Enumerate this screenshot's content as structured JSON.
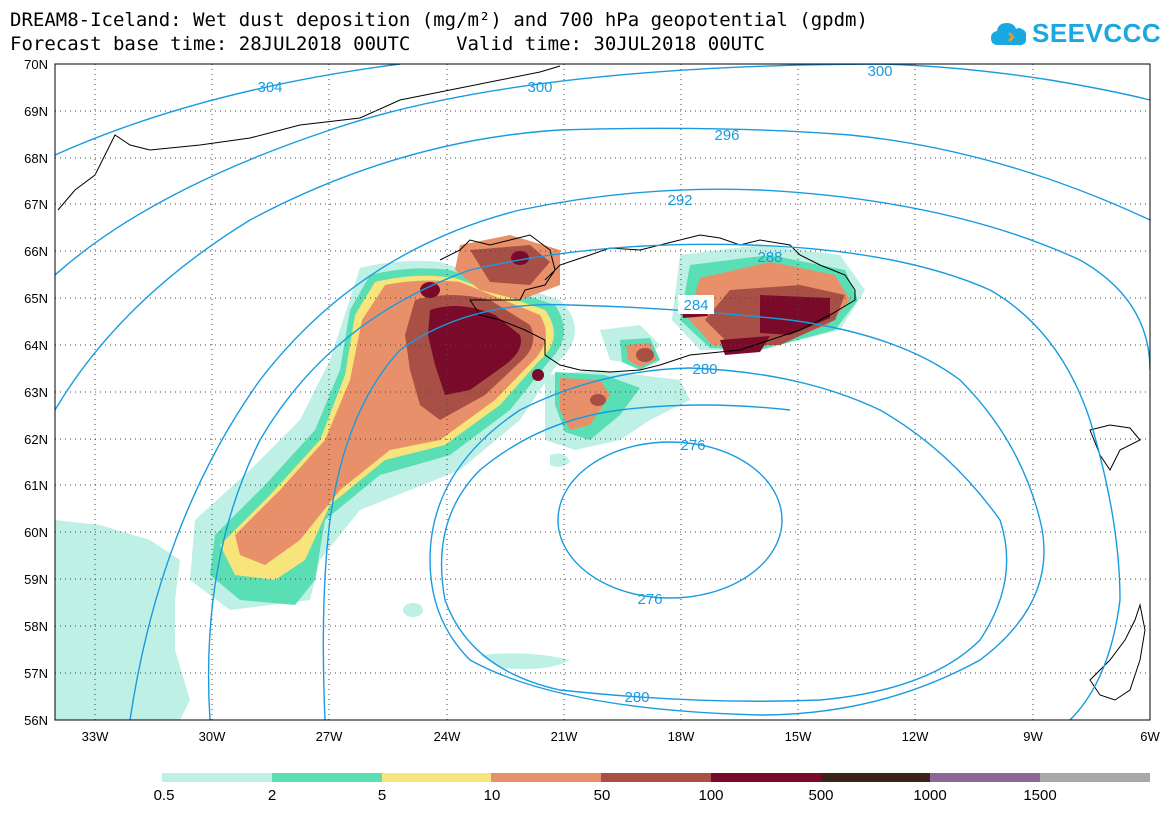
{
  "header": {
    "title_line1": "DREAM8-Iceland: Wet dust deposition (mg/m²) and 700 hPa geopotential (gpdm)",
    "title_line2": "Forecast base time: 28JUL2018 00UTC    Valid time: 30JUL2018 00UTC"
  },
  "logo": {
    "text": "SEEVCCC",
    "icon": "cloud-icon",
    "color": "#1aa8e3"
  },
  "map": {
    "lat_labels": [
      "70N",
      "69N",
      "68N",
      "67N",
      "66N",
      "65N",
      "64N",
      "63N",
      "62N",
      "61N",
      "60N",
      "59N",
      "58N",
      "57N",
      "56N"
    ],
    "lon_labels": [
      "33W",
      "30W",
      "27W",
      "24W",
      "21W",
      "18W",
      "15W",
      "12W",
      "9W",
      "6W"
    ],
    "contour_labels": [
      "304",
      "300",
      "300",
      "296",
      "292",
      "288",
      "284",
      "280",
      "276",
      "276",
      "280"
    ],
    "contour_color": "#1a9be0",
    "coast_color": "#000000"
  },
  "legend": {
    "labels": [
      "0.5",
      "2",
      "5",
      "10",
      "50",
      "100",
      "500",
      "1000",
      "1500"
    ],
    "colors": [
      "#bff0e6",
      "#5adeb4",
      "#f7e47a",
      "#e8906a",
      "#a85046",
      "#7a0a2a",
      "#3a2418",
      "#8a6a94",
      "#a8a8a8"
    ]
  }
}
